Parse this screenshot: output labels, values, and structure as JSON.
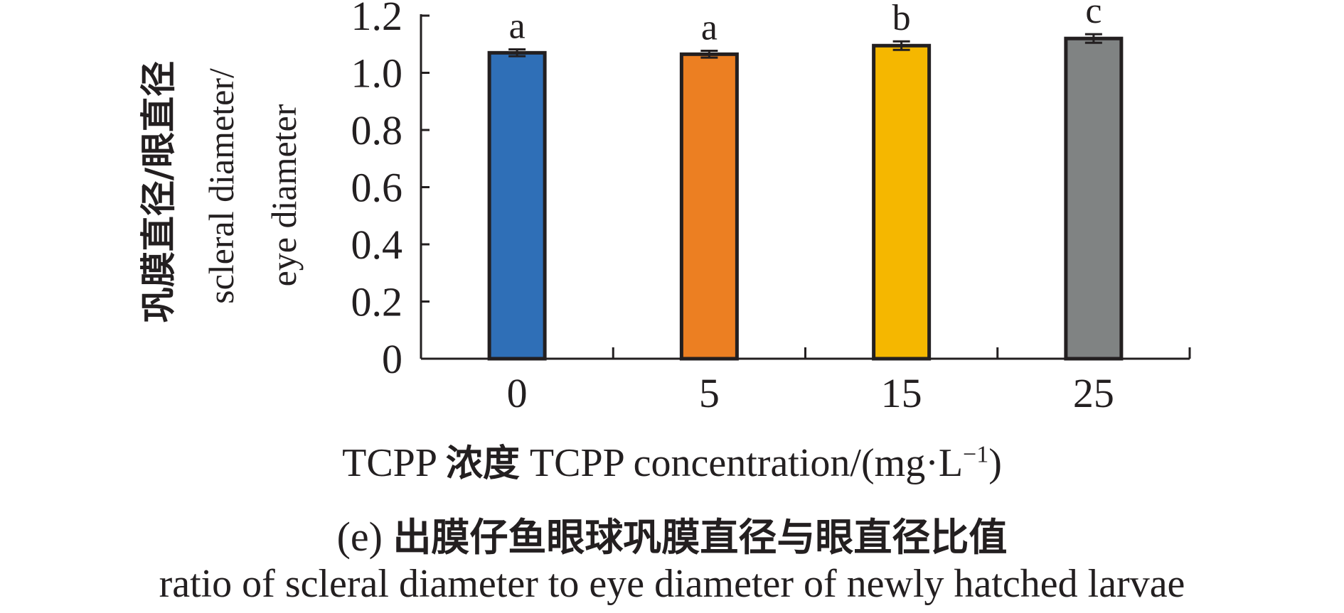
{
  "chart_data": {
    "type": "bar",
    "categories": [
      "0",
      "5",
      "15",
      "25"
    ],
    "values": [
      1.07,
      1.065,
      1.095,
      1.12
    ],
    "errors": [
      0.012,
      0.012,
      0.015,
      0.015
    ],
    "significance": [
      "a",
      "a",
      "b",
      "c"
    ],
    "colors": [
      "#2f6fb7",
      "#ec7f22",
      "#f5b700",
      "#808383"
    ],
    "ylim": [
      0,
      1.2
    ],
    "yticks": [
      "0",
      "0.2",
      "0.4",
      "0.6",
      "0.8",
      "1.0",
      "1.2"
    ],
    "ylabel": {
      "line1": "巩膜直径/眼直径",
      "line2": "scleral diameter/",
      "line3": "eye diameter"
    },
    "xlabel": {
      "prefix": "TCPP ",
      "cn": "浓度",
      "en": " TCPP concentration/(mg·L",
      "sup": "−1",
      "suffix": ")"
    },
    "subtitle": {
      "prefix": "(e) ",
      "cn": "出膜仔鱼眼球巩膜直径与眼直径比值",
      "en": "ratio of scleral diameter to eye diameter of newly hatched larvae"
    }
  }
}
